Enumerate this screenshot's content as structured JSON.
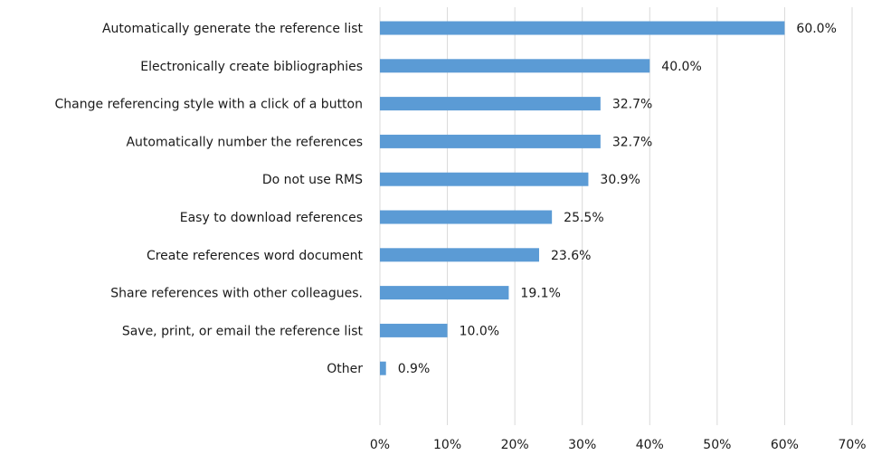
{
  "chart_data": {
    "type": "bar",
    "orientation": "horizontal",
    "categories": [
      "Automatically generate the reference list",
      "Electronically create bibliographies",
      "Change referencing style with a click of a button",
      "Automatically number the references",
      "Do not use RMS",
      "Easy to download references",
      "Create references word document",
      "Share references with other colleagues.",
      "Save, print, or email the reference list",
      "Other"
    ],
    "values": [
      60.0,
      40.0,
      32.7,
      32.7,
      30.9,
      25.5,
      23.6,
      19.1,
      10.0,
      0.9
    ],
    "data_labels": [
      "60.0%",
      "40.0%",
      "32.7%",
      "32.7%",
      "30.9%",
      "25.5%",
      "23.6%",
      "19.1%",
      "10.0%",
      "0.9%"
    ],
    "xlim": [
      0,
      70
    ],
    "x_ticks": [
      "0%",
      "10%",
      "20%",
      "30%",
      "40%",
      "50%",
      "60%",
      "70%"
    ],
    "title": "",
    "xlabel": "",
    "ylabel": "",
    "grid": "vertical",
    "legend": "none",
    "colors": {
      "bar": "#5b9bd5",
      "grid": "#d9d9d9",
      "text": "#1a1a1a"
    }
  }
}
